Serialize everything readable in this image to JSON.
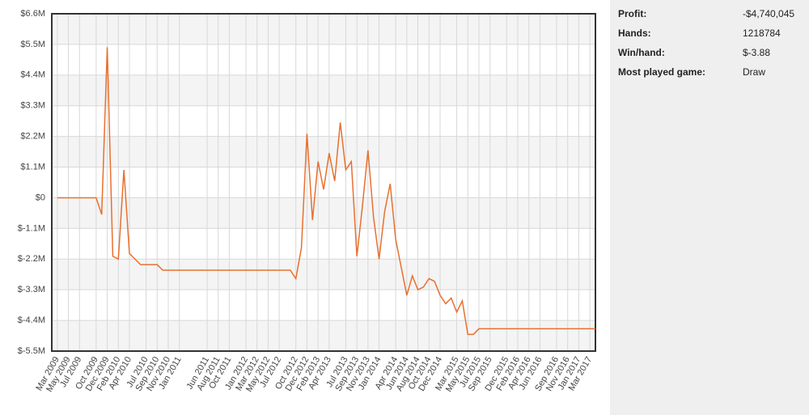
{
  "chart_data": {
    "type": "line",
    "x": [
      "2009-03",
      "2009-04",
      "2009-05",
      "2009-06",
      "2009-07",
      "2009-08",
      "2009-09",
      "2009-10",
      "2009-11",
      "2009-12",
      "2010-01",
      "2010-02",
      "2010-03",
      "2010-04",
      "2010-05",
      "2010-06",
      "2010-07",
      "2010-08",
      "2010-09",
      "2010-10",
      "2010-11",
      "2010-12",
      "2011-01",
      "2011-02",
      "2011-03",
      "2011-04",
      "2011-05",
      "2011-06",
      "2011-07",
      "2011-08",
      "2011-09",
      "2011-10",
      "2011-11",
      "2011-12",
      "2012-01",
      "2012-02",
      "2012-03",
      "2012-04",
      "2012-05",
      "2012-06",
      "2012-07",
      "2012-08",
      "2012-09",
      "2012-10",
      "2012-11",
      "2012-12",
      "2013-01",
      "2013-02",
      "2013-03",
      "2013-04",
      "2013-05",
      "2013-06",
      "2013-07",
      "2013-08",
      "2013-09",
      "2013-10",
      "2013-11",
      "2013-12",
      "2014-01",
      "2014-02",
      "2014-03",
      "2014-04",
      "2014-05",
      "2014-06",
      "2014-07",
      "2014-08",
      "2014-09",
      "2014-10",
      "2014-11",
      "2014-12",
      "2015-01",
      "2015-02",
      "2015-03",
      "2015-04",
      "2015-05",
      "2015-06",
      "2015-07",
      "2015-08",
      "2015-09",
      "2015-10",
      "2015-11",
      "2015-12",
      "2016-01",
      "2016-02",
      "2016-03",
      "2016-04",
      "2016-05",
      "2016-06",
      "2016-07",
      "2016-08",
      "2016-09",
      "2016-10",
      "2016-11",
      "2016-12",
      "2017-01",
      "2017-02",
      "2017-03",
      "2017-04"
    ],
    "series": [
      {
        "color": "#e8702f",
        "values": [
          0,
          0,
          0,
          0,
          0,
          0,
          0,
          0,
          -600000,
          5400000,
          -2100000,
          -2200000,
          1000000,
          -2000000,
          -2200000,
          -2400000,
          -2400000,
          -2400000,
          -2400000,
          -2600000,
          -2600000,
          -2600000,
          -2600000,
          -2600000,
          -2600000,
          -2600000,
          -2600000,
          -2600000,
          -2600000,
          -2600000,
          -2600000,
          -2600000,
          -2600000,
          -2600000,
          -2600000,
          -2600000,
          -2600000,
          -2600000,
          -2600000,
          -2600000,
          -2600000,
          -2600000,
          -2600000,
          -2900000,
          -1800000,
          2300000,
          -800000,
          1300000,
          300000,
          1600000,
          600000,
          2700000,
          1000000,
          1300000,
          -2100000,
          -300000,
          1700000,
          -700000,
          -2200000,
          -500000,
          500000,
          -1500000,
          -2500000,
          -3500000,
          -2800000,
          -3300000,
          -3200000,
          -2900000,
          -3000000,
          -3500000,
          -3800000,
          -3600000,
          -4100000,
          -3700000,
          -4900000,
          -4900000,
          -4700000,
          -4700000,
          -4700000,
          -4700000,
          -4700000,
          -4700000,
          -4700000,
          -4700000,
          -4700000,
          -4700000,
          -4700000,
          -4700000,
          -4700000,
          -4700000,
          -4700000,
          -4700000,
          -4700000,
          -4700000,
          -4700000,
          -4700000,
          -4700000,
          -4700000
        ]
      }
    ],
    "xlim": [
      "2009-02",
      "2017-04"
    ],
    "xticks": [
      {
        "value": "2009-03",
        "label": "Mar 2009"
      },
      {
        "value": "2009-05",
        "label": "May 2009"
      },
      {
        "value": "2009-07",
        "label": "Jul 2009"
      },
      {
        "value": "2009-10",
        "label": "Oct 2009"
      },
      {
        "value": "2009-12",
        "label": "Dec 2009"
      },
      {
        "value": "2010-02",
        "label": "Feb 2010"
      },
      {
        "value": "2010-04",
        "label": "Apr 2010"
      },
      {
        "value": "2010-07",
        "label": "Jul 2010"
      },
      {
        "value": "2010-09",
        "label": "Sep 2010"
      },
      {
        "value": "2010-11",
        "label": "Nov 2010"
      },
      {
        "value": "2011-01",
        "label": "Jan 2011"
      },
      {
        "value": "2011-06",
        "label": "Jun 2011"
      },
      {
        "value": "2011-08",
        "label": "Aug 2011"
      },
      {
        "value": "2011-10",
        "label": "Oct 2011"
      },
      {
        "value": "2012-01",
        "label": "Jan 2012"
      },
      {
        "value": "2012-03",
        "label": "Mar 2012"
      },
      {
        "value": "2012-05",
        "label": "May 2012"
      },
      {
        "value": "2012-07",
        "label": "Jul 2012"
      },
      {
        "value": "2012-10",
        "label": "Oct 2012"
      },
      {
        "value": "2012-12",
        "label": "Dec 2012"
      },
      {
        "value": "2013-02",
        "label": "Feb 2013"
      },
      {
        "value": "2013-04",
        "label": "Apr 2013"
      },
      {
        "value": "2013-07",
        "label": "Jul 2013"
      },
      {
        "value": "2013-09",
        "label": "Sep 2013"
      },
      {
        "value": "2013-11",
        "label": "Nov 2013"
      },
      {
        "value": "2014-01",
        "label": "Jan 2014"
      },
      {
        "value": "2014-04",
        "label": "Apr 2014"
      },
      {
        "value": "2014-06",
        "label": "Jun 2014"
      },
      {
        "value": "2014-08",
        "label": "Aug 2014"
      },
      {
        "value": "2014-10",
        "label": "Oct 2014"
      },
      {
        "value": "2014-12",
        "label": "Dec 2014"
      },
      {
        "value": "2015-03",
        "label": "Mar 2015"
      },
      {
        "value": "2015-05",
        "label": "May 2015"
      },
      {
        "value": "2015-07",
        "label": "Jul 2015"
      },
      {
        "value": "2015-09",
        "label": "Sep 2015"
      },
      {
        "value": "2015-12",
        "label": "Dec 2015"
      },
      {
        "value": "2016-02",
        "label": "Feb 2016"
      },
      {
        "value": "2016-04",
        "label": "Apr 2016"
      },
      {
        "value": "2016-06",
        "label": "Jun 2016"
      },
      {
        "value": "2016-09",
        "label": "Sep 2016"
      },
      {
        "value": "2016-11",
        "label": "Nov 2016"
      },
      {
        "value": "2017-01",
        "label": "Jan 2017"
      },
      {
        "value": "2017-03",
        "label": "Mar 2017"
      }
    ],
    "ylim": [
      -5500000,
      6600000
    ],
    "yticks": [
      {
        "value": 6600000,
        "label": "$6.6M"
      },
      {
        "value": 5500000,
        "label": "$5.5M"
      },
      {
        "value": 4400000,
        "label": "$4.4M"
      },
      {
        "value": 3300000,
        "label": "$3.3M"
      },
      {
        "value": 2200000,
        "label": "$2.2M"
      },
      {
        "value": 1100000,
        "label": "$1.1M"
      },
      {
        "value": 0,
        "label": "$0"
      },
      {
        "value": -1100000,
        "label": "$-1.1M"
      },
      {
        "value": -2200000,
        "label": "$-2.2M"
      },
      {
        "value": -3300000,
        "label": "$-3.3M"
      },
      {
        "value": -4400000,
        "label": "$-4.4M"
      },
      {
        "value": -5500000,
        "label": "$-5.5M"
      }
    ],
    "grid": true
  },
  "stats": [
    {
      "label": "Profit:",
      "value": "-$4,740,045"
    },
    {
      "label": "Hands:",
      "value": "1218784"
    },
    {
      "label": "Win/hand:",
      "value": "$-3.88"
    },
    {
      "label": "Most played game:",
      "value": "Draw"
    }
  ]
}
